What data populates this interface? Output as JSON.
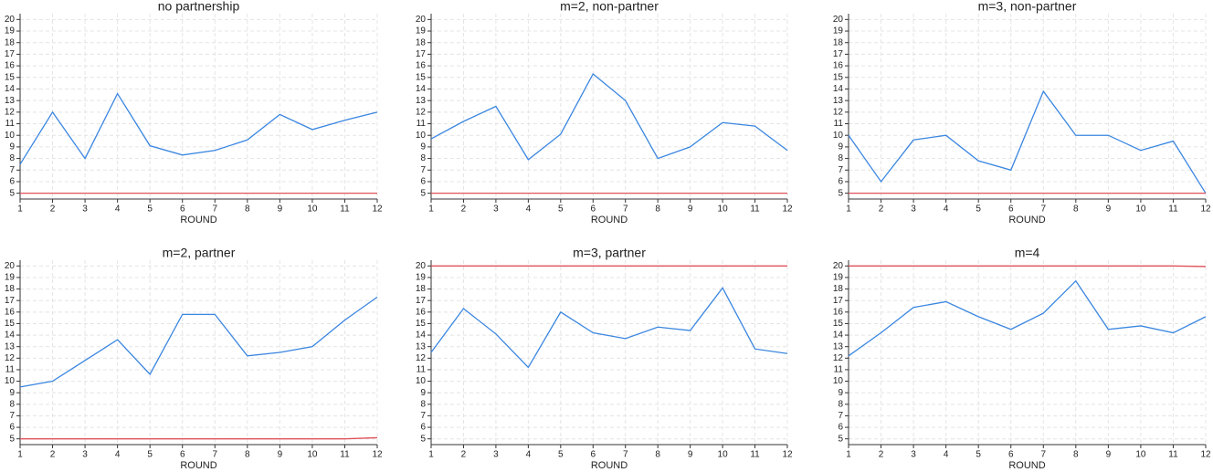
{
  "chart_data": [
    {
      "type": "line",
      "title": "no partnership",
      "xlabel": "ROUND",
      "x": [
        1,
        2,
        3,
        4,
        5,
        6,
        7,
        8,
        9,
        10,
        11,
        12
      ],
      "xlim": [
        1,
        12
      ],
      "xticks": [
        1,
        2,
        3,
        4,
        5,
        6,
        7,
        8,
        9,
        10,
        11,
        12
      ],
      "ylim": [
        4.5,
        20.5
      ],
      "yticks": [
        5,
        6,
        7,
        8,
        9,
        10,
        11,
        12,
        13,
        14,
        15,
        16,
        17,
        18,
        19,
        20
      ],
      "grid": true,
      "series": [
        {
          "color": "#3a86e0",
          "values": [
            7.5,
            12,
            8,
            13.6,
            9.1,
            8.3,
            8.7,
            9.6,
            11.8,
            10.5,
            11.3,
            12
          ]
        },
        {
          "color": "#e0525a",
          "values": [
            5,
            5,
            5,
            5,
            5,
            5,
            5,
            5,
            5,
            5,
            5,
            5
          ]
        }
      ]
    },
    {
      "type": "line",
      "title": "m=2, non-partner",
      "xlabel": "ROUND",
      "x": [
        1,
        2,
        3,
        4,
        5,
        6,
        7,
        8,
        9,
        10,
        11,
        12
      ],
      "xlim": [
        1,
        12
      ],
      "xticks": [
        1,
        2,
        3,
        4,
        5,
        6,
        7,
        8,
        9,
        10,
        11,
        12
      ],
      "ylim": [
        4.5,
        20.5
      ],
      "yticks": [
        5,
        6,
        7,
        8,
        9,
        10,
        11,
        12,
        13,
        14,
        15,
        16,
        17,
        18,
        19,
        20
      ],
      "grid": true,
      "series": [
        {
          "color": "#3a86e0",
          "values": [
            9.7,
            11.2,
            12.5,
            7.9,
            10.1,
            15.3,
            13,
            8,
            9,
            11.1,
            10.8,
            8.7
          ]
        },
        {
          "color": "#e0525a",
          "values": [
            5,
            5,
            5,
            5,
            5,
            5,
            5,
            5,
            5,
            5,
            5,
            5
          ]
        }
      ]
    },
    {
      "type": "line",
      "title": "m=3, non-partner",
      "xlabel": "ROUND",
      "x": [
        1,
        2,
        3,
        4,
        5,
        6,
        7,
        8,
        9,
        10,
        11,
        12
      ],
      "xlim": [
        1,
        12
      ],
      "xticks": [
        1,
        2,
        3,
        4,
        5,
        6,
        7,
        8,
        9,
        10,
        11,
        12
      ],
      "ylim": [
        4.5,
        20.5
      ],
      "yticks": [
        5,
        6,
        7,
        8,
        9,
        10,
        11,
        12,
        13,
        14,
        15,
        16,
        17,
        18,
        19,
        20
      ],
      "grid": true,
      "series": [
        {
          "color": "#3a86e0",
          "values": [
            10,
            6,
            9.6,
            10,
            7.8,
            7,
            13.8,
            10,
            10,
            8.7,
            9.5,
            5
          ]
        },
        {
          "color": "#e0525a",
          "values": [
            5,
            5,
            5,
            5,
            5,
            5,
            5,
            5,
            5,
            5,
            5,
            5
          ]
        }
      ]
    },
    {
      "type": "line",
      "title": "m=2, partner",
      "xlabel": "ROUND",
      "x": [
        1,
        2,
        3,
        4,
        5,
        6,
        7,
        8,
        9,
        10,
        11,
        12
      ],
      "xlim": [
        1,
        12
      ],
      "xticks": [
        1,
        2,
        3,
        4,
        5,
        6,
        7,
        8,
        9,
        10,
        11,
        12
      ],
      "ylim": [
        4.5,
        20.5
      ],
      "yticks": [
        5,
        6,
        7,
        8,
        9,
        10,
        11,
        12,
        13,
        14,
        15,
        16,
        17,
        18,
        19,
        20
      ],
      "grid": true,
      "series": [
        {
          "color": "#3a86e0",
          "values": [
            9.5,
            10,
            11.8,
            13.6,
            10.6,
            15.8,
            15.8,
            12.2,
            12.5,
            13,
            15.3,
            17.3
          ]
        },
        {
          "color": "#e0525a",
          "values": [
            5,
            5,
            5,
            5,
            5,
            5,
            5,
            5,
            5,
            5,
            5,
            5.1
          ]
        }
      ]
    },
    {
      "type": "line",
      "title": "m=3, partner",
      "xlabel": "ROUND",
      "x": [
        1,
        2,
        3,
        4,
        5,
        6,
        7,
        8,
        9,
        10,
        11,
        12
      ],
      "xlim": [
        1,
        12
      ],
      "xticks": [
        1,
        2,
        3,
        4,
        5,
        6,
        7,
        8,
        9,
        10,
        11,
        12
      ],
      "ylim": [
        4.5,
        20.5
      ],
      "yticks": [
        5,
        6,
        7,
        8,
        9,
        10,
        11,
        12,
        13,
        14,
        15,
        16,
        17,
        18,
        19,
        20
      ],
      "grid": true,
      "series": [
        {
          "color": "#3a86e0",
          "values": [
            12.5,
            16.3,
            14.1,
            11.2,
            16,
            14.2,
            13.7,
            14.7,
            14.4,
            18.1,
            12.8,
            12.4
          ]
        },
        {
          "color": "#e0525a",
          "values": [
            20,
            20,
            20,
            20,
            20,
            20,
            20,
            20,
            20,
            20,
            20,
            20
          ]
        }
      ]
    },
    {
      "type": "line",
      "title": "m=4",
      "xlabel": "ROUND",
      "x": [
        1,
        2,
        3,
        4,
        5,
        6,
        7,
        8,
        9,
        10,
        11,
        12
      ],
      "xlim": [
        1,
        12
      ],
      "xticks": [
        1,
        2,
        3,
        4,
        5,
        6,
        7,
        8,
        9,
        10,
        11,
        12
      ],
      "ylim": [
        4.5,
        20.5
      ],
      "yticks": [
        5,
        6,
        7,
        8,
        9,
        10,
        11,
        12,
        13,
        14,
        15,
        16,
        17,
        18,
        19,
        20
      ],
      "grid": true,
      "series": [
        {
          "color": "#3a86e0",
          "values": [
            12.2,
            14.2,
            16.4,
            16.9,
            15.6,
            14.5,
            15.9,
            18.7,
            14.5,
            14.8,
            14.2,
            15.6
          ]
        },
        {
          "color": "#e0525a",
          "values": [
            20,
            20,
            20,
            20,
            20,
            20,
            20,
            20,
            20,
            20,
            20,
            19.95
          ]
        }
      ]
    }
  ]
}
